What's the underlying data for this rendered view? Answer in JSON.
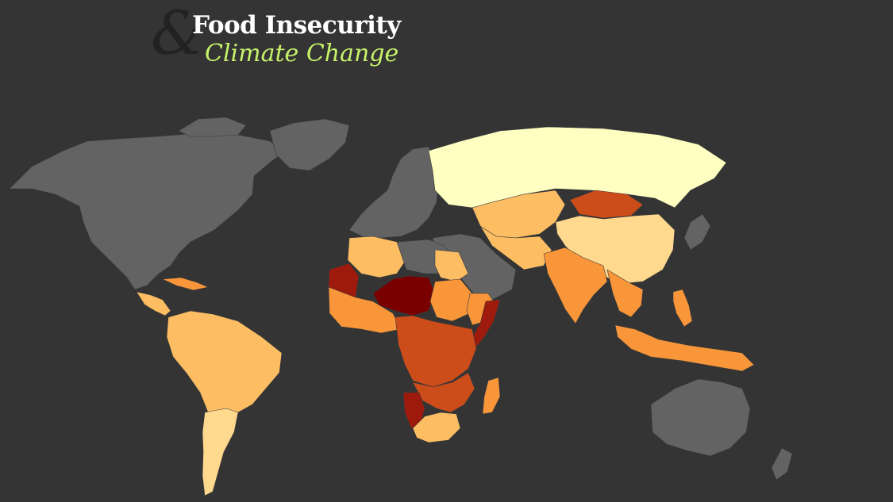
{
  "title": {
    "line1": "Food Insecurity",
    "line2": "Climate Change",
    "logo_glyph": "&"
  },
  "colors": {
    "background": "#343434",
    "no_data": "#636363",
    "title_white": "#ffffff",
    "title_green": "#c6f26a",
    "ampersand": "#222222",
    "level_1": "#ffffc2",
    "level_2": "#fed98e",
    "level_3": "#fdbe63",
    "level_4": "#f99639",
    "level_5": "#cc4c1a",
    "level_6": "#9e1a0d",
    "level_7": "#7a0000"
  },
  "map": {
    "type": "choropleth",
    "regions": [
      {
        "name": "North America",
        "level": 0
      },
      {
        "name": "Greenland",
        "level": 0
      },
      {
        "name": "Central America",
        "level": 3
      },
      {
        "name": "Caribbean",
        "level": 4
      },
      {
        "name": "South America North",
        "level": 3
      },
      {
        "name": "South America South",
        "level": 2
      },
      {
        "name": "Europe",
        "level": 0
      },
      {
        "name": "Russia",
        "level": 1
      },
      {
        "name": "Central Asia",
        "level": 3
      },
      {
        "name": "Mongolia",
        "level": 5
      },
      {
        "name": "China",
        "level": 3
      },
      {
        "name": "Japan",
        "level": 0
      },
      {
        "name": "Middle East",
        "level": 0
      },
      {
        "name": "Iran Afghanistan",
        "level": 3
      },
      {
        "name": "India",
        "level": 4
      },
      {
        "name": "Southeast Asia",
        "level": 4
      },
      {
        "name": "Philippines",
        "level": 4
      },
      {
        "name": "Indonesia",
        "level": 4
      },
      {
        "name": "Australia",
        "level": 0
      },
      {
        "name": "North Africa",
        "level": 3
      },
      {
        "name": "Libya",
        "level": 0
      },
      {
        "name": "Mauritania",
        "level": 6
      },
      {
        "name": "Niger Chad",
        "level": 7
      },
      {
        "name": "Sahel West",
        "level": 4
      },
      {
        "name": "Central Africa",
        "level": 5
      },
      {
        "name": "Horn of Africa",
        "level": 4
      },
      {
        "name": "Somalia",
        "level": 6
      },
      {
        "name": "Southern Africa",
        "level": 5
      },
      {
        "name": "Namibia",
        "level": 6
      },
      {
        "name": "South Africa",
        "level": 3
      },
      {
        "name": "Madagascar",
        "level": 4
      }
    ]
  }
}
